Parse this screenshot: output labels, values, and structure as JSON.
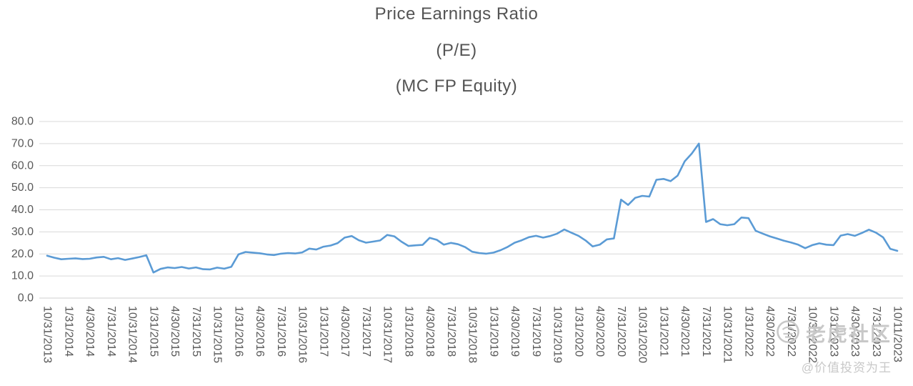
{
  "page": {
    "background_color": "#ffffff",
    "text_color": "#595959"
  },
  "chart_data": {
    "type": "line",
    "title": "Price Earnings Ratio",
    "subtitle1": "(P/E)",
    "subtitle2": "(MC FP Equity)",
    "legend": "none",
    "grid": "horizontal",
    "gridline_color": "#d9d9d9",
    "axis_line_color": "#cfcfcf",
    "axis_text_color": "#595959",
    "title_color": "#545454",
    "ylim": [
      0,
      80
    ],
    "y_tick_step": 10,
    "y_tick_labels": [
      "0.0",
      "10.0",
      "20.0",
      "30.0",
      "40.0",
      "50.0",
      "60.0",
      "70.0",
      "80.0"
    ],
    "x_tick_every": 3,
    "x_label_rotation_deg": 90,
    "x": [
      "10/31/2013",
      "11/30/2013",
      "12/31/2013",
      "1/31/2014",
      "2/28/2014",
      "3/31/2014",
      "4/30/2014",
      "5/31/2014",
      "6/30/2014",
      "7/31/2014",
      "8/31/2014",
      "9/30/2014",
      "10/31/2014",
      "11/30/2014",
      "12/31/2014",
      "1/31/2015",
      "2/28/2015",
      "3/31/2015",
      "4/30/2015",
      "5/31/2015",
      "6/30/2015",
      "7/31/2015",
      "8/31/2015",
      "9/30/2015",
      "10/31/2015",
      "11/30/2015",
      "12/31/2015",
      "1/31/2016",
      "2/29/2016",
      "3/31/2016",
      "4/30/2016",
      "5/31/2016",
      "6/30/2016",
      "7/31/2016",
      "8/31/2016",
      "9/30/2016",
      "10/31/2016",
      "11/30/2016",
      "12/31/2016",
      "1/31/2017",
      "2/28/2017",
      "3/31/2017",
      "4/30/2017",
      "5/31/2017",
      "6/30/2017",
      "7/31/2017",
      "8/31/2017",
      "9/30/2017",
      "10/31/2017",
      "11/30/2017",
      "12/31/2017",
      "1/31/2018",
      "2/28/2018",
      "3/31/2018",
      "4/30/2018",
      "5/31/2018",
      "6/30/2018",
      "7/31/2018",
      "8/31/2018",
      "9/30/2018",
      "10/31/2018",
      "11/30/2018",
      "12/31/2018",
      "1/31/2019",
      "2/28/2019",
      "3/31/2019",
      "4/30/2019",
      "5/31/2019",
      "6/30/2019",
      "7/31/2019",
      "8/31/2019",
      "9/30/2019",
      "10/31/2019",
      "11/30/2019",
      "12/31/2019",
      "1/31/2020",
      "2/29/2020",
      "3/31/2020",
      "4/30/2020",
      "5/31/2020",
      "6/30/2020",
      "7/31/2020",
      "8/31/2020",
      "9/30/2020",
      "10/31/2020",
      "11/30/2020",
      "12/31/2020",
      "1/31/2021",
      "2/28/2021",
      "3/31/2021",
      "4/30/2021",
      "5/31/2021",
      "6/30/2021",
      "7/31/2021",
      "8/31/2021",
      "9/30/2021",
      "10/31/2021",
      "11/30/2021",
      "12/31/2021",
      "1/31/2022",
      "2/28/2022",
      "3/31/2022",
      "4/30/2022",
      "5/31/2022",
      "6/30/2022",
      "7/31/2022",
      "8/31/2022",
      "9/30/2022",
      "10/31/2022",
      "11/30/2022",
      "12/31/2022",
      "1/31/2023",
      "2/28/2023",
      "3/31/2023",
      "4/30/2023",
      "5/31/2023",
      "6/30/2023",
      "7/31/2023",
      "8/31/2023",
      "9/30/2023",
      "10/11/2023"
    ],
    "series": [
      {
        "name": "P/E (MC FP Equity)",
        "color": "#5b9bd5",
        "values": [
          19.2,
          18.3,
          17.6,
          17.8,
          18.0,
          17.7,
          17.8,
          18.4,
          18.7,
          17.6,
          18.1,
          17.3,
          17.9,
          18.6,
          19.4,
          11.6,
          13.2,
          13.9,
          13.6,
          14.1,
          13.4,
          13.9,
          13.1,
          13.0,
          13.8,
          13.3,
          14.2,
          19.8,
          20.9,
          20.6,
          20.3,
          19.8,
          19.5,
          20.1,
          20.4,
          20.2,
          20.7,
          22.4,
          22.0,
          23.3,
          23.8,
          24.9,
          27.4,
          28.1,
          26.2,
          25.1,
          25.6,
          26.1,
          28.6,
          28.0,
          25.6,
          23.6,
          23.9,
          24.1,
          27.3,
          26.4,
          24.2,
          25.0,
          24.4,
          23.1,
          21.0,
          20.4,
          20.1,
          20.6,
          21.7,
          23.2,
          25.1,
          26.2,
          27.6,
          28.2,
          27.4,
          28.1,
          29.2,
          31.1,
          29.6,
          28.2,
          26.1,
          23.4,
          24.2,
          26.6,
          27.0,
          44.6,
          42.2,
          45.4,
          46.3,
          46.0,
          53.6,
          54.0,
          53.0,
          55.5,
          62.0,
          65.5,
          70.0,
          34.5,
          35.8,
          33.5,
          33.0,
          33.5,
          36.5,
          36.2,
          30.5,
          29.2,
          28.0,
          27.0,
          26.0,
          25.2,
          24.2,
          22.6,
          24.0,
          24.8,
          24.2,
          24.0,
          28.3,
          29.0,
          28.2,
          29.5,
          31.0,
          29.6,
          27.5,
          22.3,
          21.4
        ]
      }
    ]
  },
  "watermark": {
    "brand": "老虎社区",
    "handle": "@价值投资为王",
    "color": "#c8c8c8"
  }
}
